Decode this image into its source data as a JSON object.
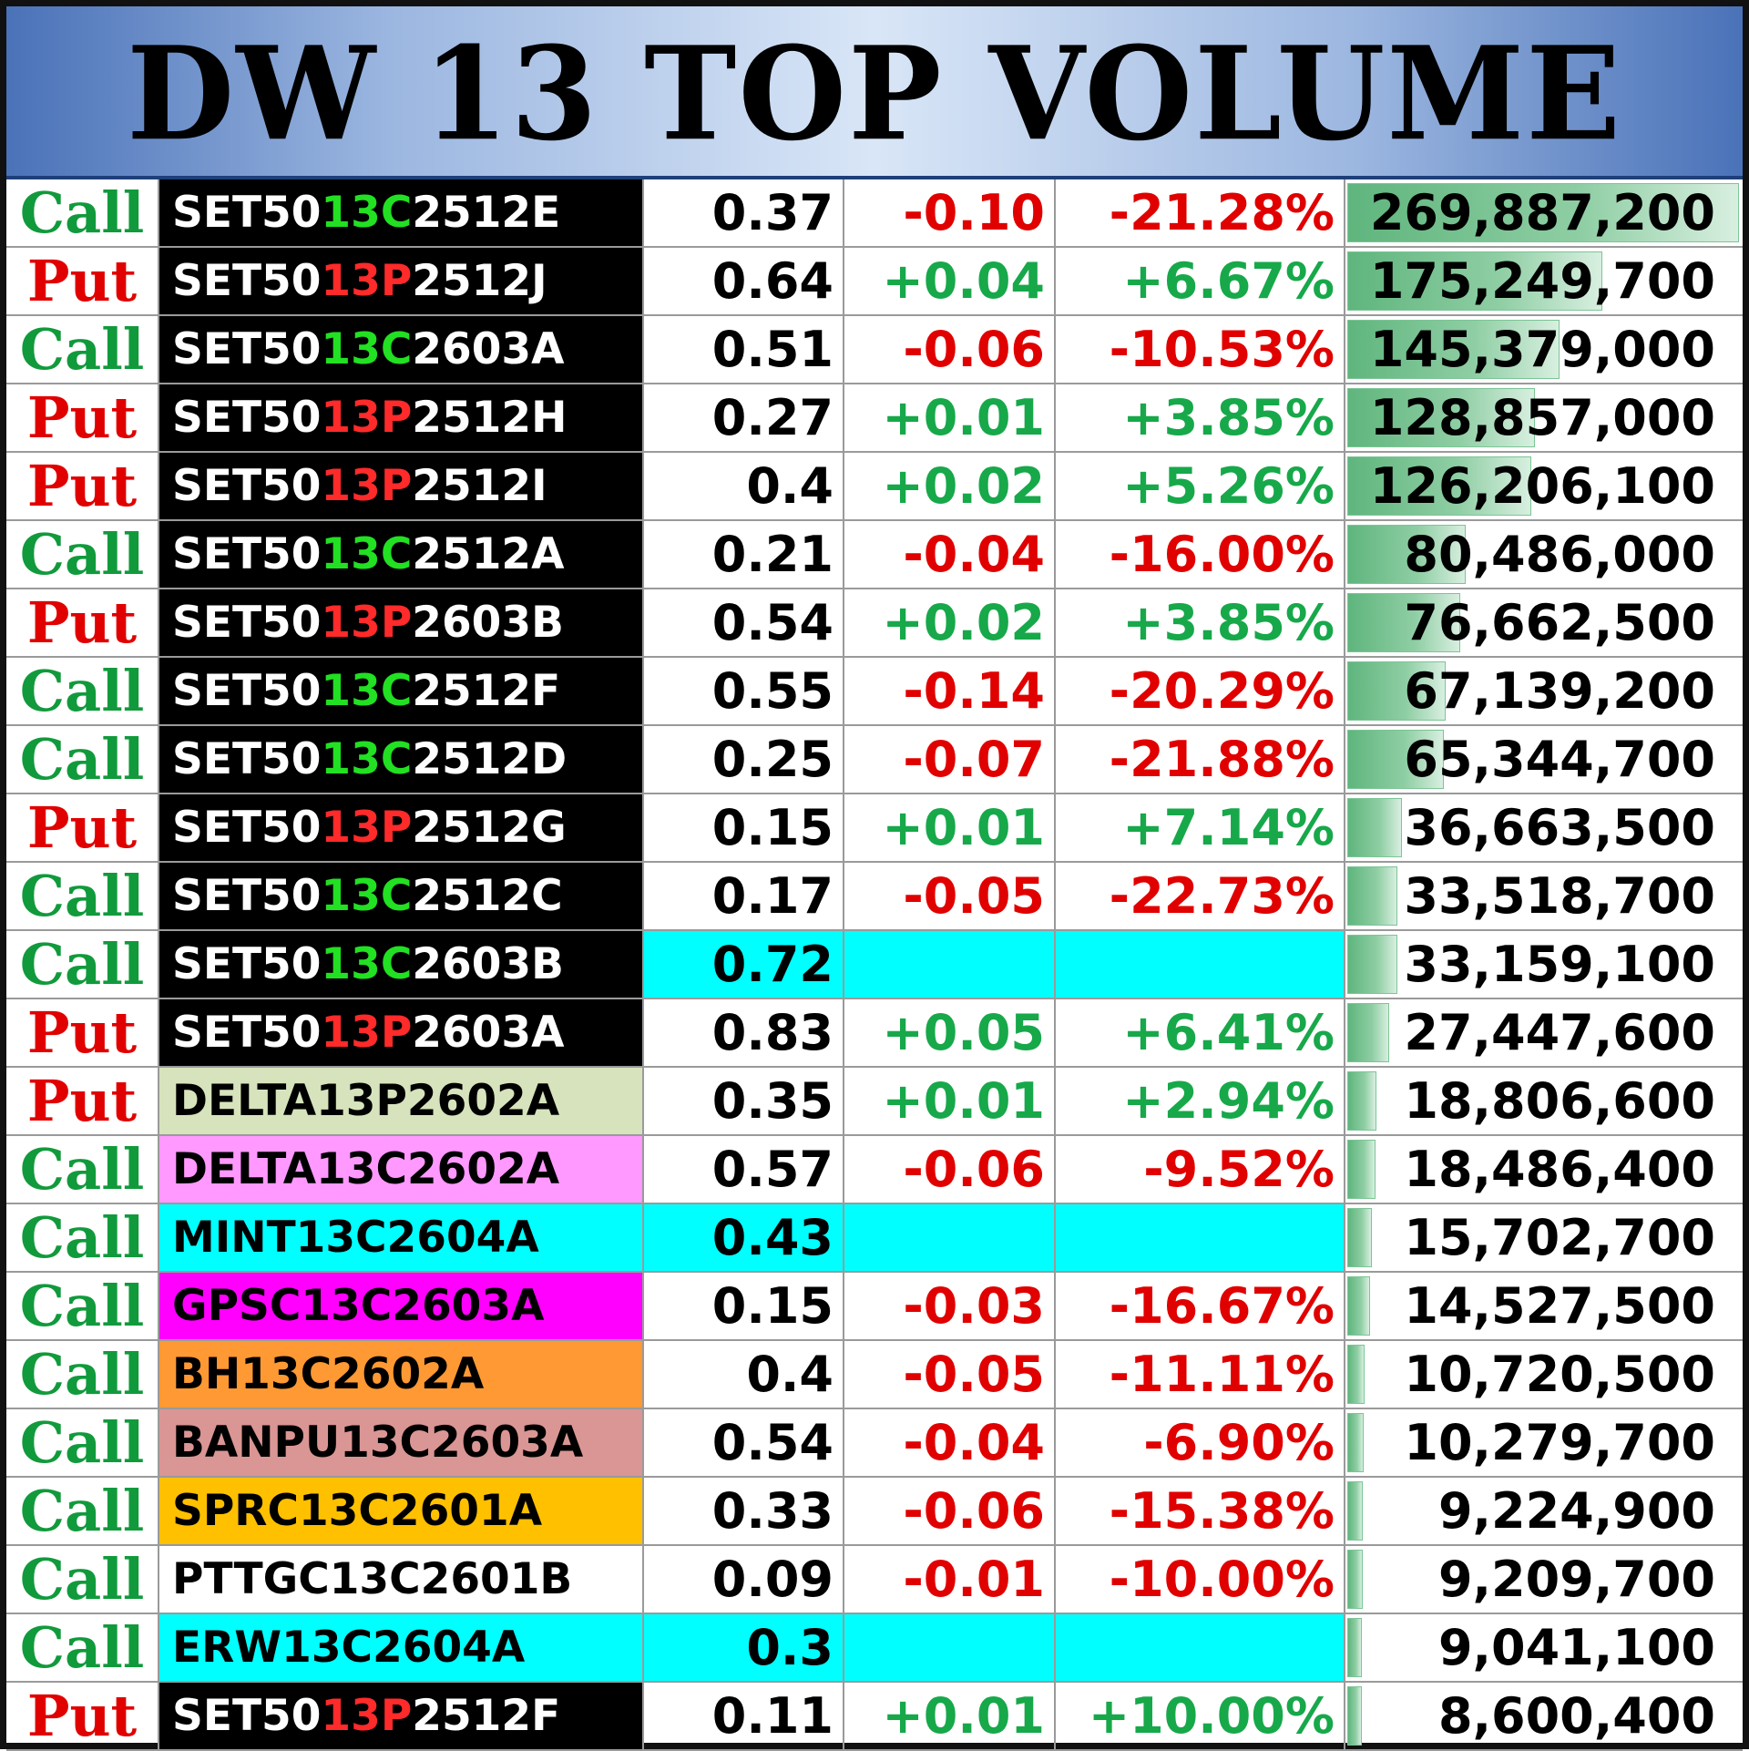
{
  "title": "DW 13 TOP VOLUME",
  "colors": {
    "call": "#119a3c",
    "put": "#e00000",
    "positive": "#17a84a",
    "negative": "#e00000",
    "highlight_cyan": "#00ffff",
    "volume_bar": "#5fb57d"
  },
  "max_volume": 269887200,
  "rows": [
    {
      "type": "Call",
      "name_pre": "SET50",
      "name_mid": "13C",
      "name_post": "2512E",
      "name": "",
      "name_bg": "black",
      "price": "0.37",
      "change": "-0.10",
      "pct": "-21.28%",
      "volume": "269,887,200",
      "volume_value": 269887200
    },
    {
      "type": "Put",
      "name_pre": "SET50",
      "name_mid": "13P",
      "name_post": "2512J",
      "name": "",
      "name_bg": "black",
      "price": "0.64",
      "change": "+0.04",
      "pct": "+6.67%",
      "volume": "175,249,700",
      "volume_value": 175249700
    },
    {
      "type": "Call",
      "name_pre": "SET50",
      "name_mid": "13C",
      "name_post": "2603A",
      "name": "",
      "name_bg": "black",
      "price": "0.51",
      "change": "-0.06",
      "pct": "-10.53%",
      "volume": "145,379,000",
      "volume_value": 145379000
    },
    {
      "type": "Put",
      "name_pre": "SET50",
      "name_mid": "13P",
      "name_post": "2512H",
      "name": "",
      "name_bg": "black",
      "price": "0.27",
      "change": "+0.01",
      "pct": "+3.85%",
      "volume": "128,857,000",
      "volume_value": 128857000
    },
    {
      "type": "Put",
      "name_pre": "SET50",
      "name_mid": "13P",
      "name_post": "2512I",
      "name": "",
      "name_bg": "black",
      "price": "0.4",
      "change": "+0.02",
      "pct": "+5.26%",
      "volume": "126,206,100",
      "volume_value": 126206100
    },
    {
      "type": "Call",
      "name_pre": "SET50",
      "name_mid": "13C",
      "name_post": "2512A",
      "name": "",
      "name_bg": "black",
      "price": "0.21",
      "change": "-0.04",
      "pct": "-16.00%",
      "volume": "80,486,000",
      "volume_value": 80486000
    },
    {
      "type": "Put",
      "name_pre": "SET50",
      "name_mid": "13P",
      "name_post": "2603B",
      "name": "",
      "name_bg": "black",
      "price": "0.54",
      "change": "+0.02",
      "pct": "+3.85%",
      "volume": "76,662,500",
      "volume_value": 76662500
    },
    {
      "type": "Call",
      "name_pre": "SET50",
      "name_mid": "13C",
      "name_post": "2512F",
      "name": "",
      "name_bg": "black",
      "price": "0.55",
      "change": "-0.14",
      "pct": "-20.29%",
      "volume": "67,139,200",
      "volume_value": 67139200
    },
    {
      "type": "Call",
      "name_pre": "SET50",
      "name_mid": "13C",
      "name_post": "2512D",
      "name": "",
      "name_bg": "black",
      "price": "0.25",
      "change": "-0.07",
      "pct": "-21.88%",
      "volume": "65,344,700",
      "volume_value": 65344700
    },
    {
      "type": "Put",
      "name_pre": "SET50",
      "name_mid": "13P",
      "name_post": "2512G",
      "name": "",
      "name_bg": "black",
      "price": "0.15",
      "change": "+0.01",
      "pct": "+7.14%",
      "volume": "36,663,500",
      "volume_value": 36663500
    },
    {
      "type": "Call",
      "name_pre": "SET50",
      "name_mid": "13C",
      "name_post": "2512C",
      "name": "",
      "name_bg": "black",
      "price": "0.17",
      "change": "-0.05",
      "pct": "-22.73%",
      "volume": "33,518,700",
      "volume_value": 33518700
    },
    {
      "type": "Call",
      "name_pre": "SET50",
      "name_mid": "13C",
      "name_post": "2603B",
      "name": "",
      "name_bg": "black",
      "price": "0.72",
      "change": "",
      "pct": "",
      "volume": "33,159,100",
      "volume_value": 33159100,
      "highlight": true
    },
    {
      "type": "Put",
      "name_pre": "SET50",
      "name_mid": "13P",
      "name_post": "2603A",
      "name": "",
      "name_bg": "black",
      "price": "0.83",
      "change": "+0.05",
      "pct": "+6.41%",
      "volume": "27,447,600",
      "volume_value": 27447600
    },
    {
      "type": "Put",
      "name": "DELTA13P2602A",
      "name_bg": "#d6e3bc",
      "price": "0.35",
      "change": "+0.01",
      "pct": "+2.94%",
      "volume": "18,806,600",
      "volume_value": 18806600
    },
    {
      "type": "Call",
      "name": "DELTA13C2602A",
      "name_bg": "#ff99ff",
      "price": "0.57",
      "change": "-0.06",
      "pct": "-9.52%",
      "volume": "18,486,400",
      "volume_value": 18486400
    },
    {
      "type": "Call",
      "name": "MINT13C2604A",
      "name_bg": "#00ffff",
      "price": "0.43",
      "change": "",
      "pct": "",
      "volume": "15,702,700",
      "volume_value": 15702700,
      "highlight": true
    },
    {
      "type": "Call",
      "name": "GPSC13C2603A",
      "name_bg": "#ff00ff",
      "price": "0.15",
      "change": "-0.03",
      "pct": "-16.67%",
      "volume": "14,527,500",
      "volume_value": 14527500
    },
    {
      "type": "Call",
      "name": "BH13C2602A",
      "name_bg": "#ff9933",
      "price": "0.4",
      "change": "-0.05",
      "pct": "-11.11%",
      "volume": "10,720,500",
      "volume_value": 10720500
    },
    {
      "type": "Call",
      "name": "BANPU13C2603A",
      "name_bg": "#da9694",
      "price": "0.54",
      "change": "-0.04",
      "pct": "-6.90%",
      "volume": "10,279,700",
      "volume_value": 10279700
    },
    {
      "type": "Call",
      "name": "SPRC13C2601A",
      "name_bg": "#ffc000",
      "price": "0.33",
      "change": "-0.06",
      "pct": "-15.38%",
      "volume": "9,224,900",
      "volume_value": 9224900
    },
    {
      "type": "Call",
      "name": "PTTGC13C2601B",
      "name_bg": "#ffffff",
      "price": "0.09",
      "change": "-0.01",
      "pct": "-10.00%",
      "volume": "9,209,700",
      "volume_value": 9209700
    },
    {
      "type": "Call",
      "name": "ERW13C2604A",
      "name_bg": "#00ffff",
      "price": "0.3",
      "change": "",
      "pct": "",
      "volume": "9,041,100",
      "volume_value": 9041100,
      "highlight": true
    },
    {
      "type": "Put",
      "name_pre": "SET50",
      "name_mid": "13P",
      "name_post": "2512F",
      "name": "",
      "name_bg": "black",
      "price": "0.11",
      "change": "+0.01",
      "pct": "+10.00%",
      "volume": "8,600,400",
      "volume_value": 8600400
    }
  ]
}
